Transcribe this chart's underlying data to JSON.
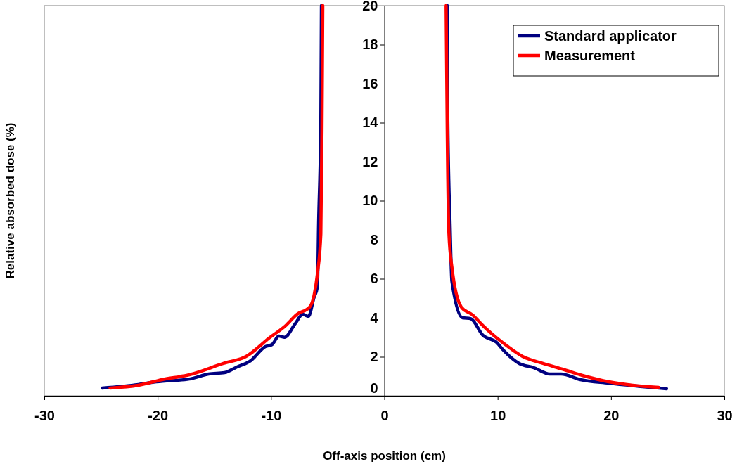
{
  "chart_data": {
    "type": "line",
    "xlabel": "Off-axis position (cm)",
    "ylabel": "Relative absorbed dose (%)",
    "xlim": [
      -30,
      30
    ],
    "xticks": [
      -30,
      -20,
      -10,
      0,
      10,
      20,
      30
    ],
    "ylim": [
      0,
      20
    ],
    "yticks": [
      0,
      2,
      4,
      6,
      8,
      10,
      12,
      14,
      16,
      18,
      20
    ],
    "grid": false,
    "legend": "top right",
    "marker": "none",
    "line_style": "solid",
    "series": [
      {
        "name": "Standard applicator",
        "color": "#000080",
        "x": [
          -24.9,
          -21.7,
          -20.1,
          -17.2,
          -15.5,
          -14.1,
          -13.0,
          -11.8,
          -10.5,
          -9.9,
          -9.3,
          -8.8,
          -7.85,
          -7.2,
          -6.7,
          -6.2,
          -5.9,
          -5.8,
          -5.6,
          -5.55,
          0,
          5.55,
          5.6,
          5.8,
          5.96,
          6.9,
          7.6,
          8.7,
          9.9,
          10.5,
          11.9,
          13.2,
          14.6,
          15.6,
          17.3,
          19.8,
          24.9
        ],
        "values": [
          0.4,
          0.58,
          0.72,
          0.86,
          1.12,
          1.19,
          1.48,
          1.8,
          2.52,
          2.63,
          3.06,
          3.0,
          3.71,
          4.18,
          4.07,
          5.04,
          5.6,
          8.8,
          14.2,
          20,
          null,
          20,
          14.2,
          8.8,
          5.87,
          4.0,
          3.96,
          3.1,
          2.74,
          2.34,
          1.66,
          1.44,
          1.12,
          1.12,
          0.83,
          0.65,
          0.36
        ]
      },
      {
        "name": "Measurement",
        "color": "#ff0000",
        "x": [
          -24.2,
          -21.7,
          -19.6,
          -17.2,
          -14.2,
          -12.2,
          -10.1,
          -8.7,
          -7.7,
          -6.6,
          -6.2,
          -5.9,
          -5.6,
          -5.5,
          -5.43,
          0,
          5.45,
          5.55,
          5.7,
          5.96,
          6.8,
          7.8,
          8.7,
          10.5,
          12.2,
          14.0,
          15.7,
          17.7,
          19.8,
          21.9,
          24.2
        ],
        "values": [
          0.4,
          0.54,
          0.83,
          1.08,
          1.66,
          2.02,
          2.99,
          3.6,
          4.18,
          4.54,
          5.15,
          6.27,
          8.3,
          13.6,
          20,
          null,
          20,
          13.6,
          8.3,
          6.6,
          4.54,
          4.14,
          3.6,
          2.7,
          2.02,
          1.66,
          1.37,
          1.01,
          0.72,
          0.54,
          0.43
        ]
      }
    ]
  }
}
